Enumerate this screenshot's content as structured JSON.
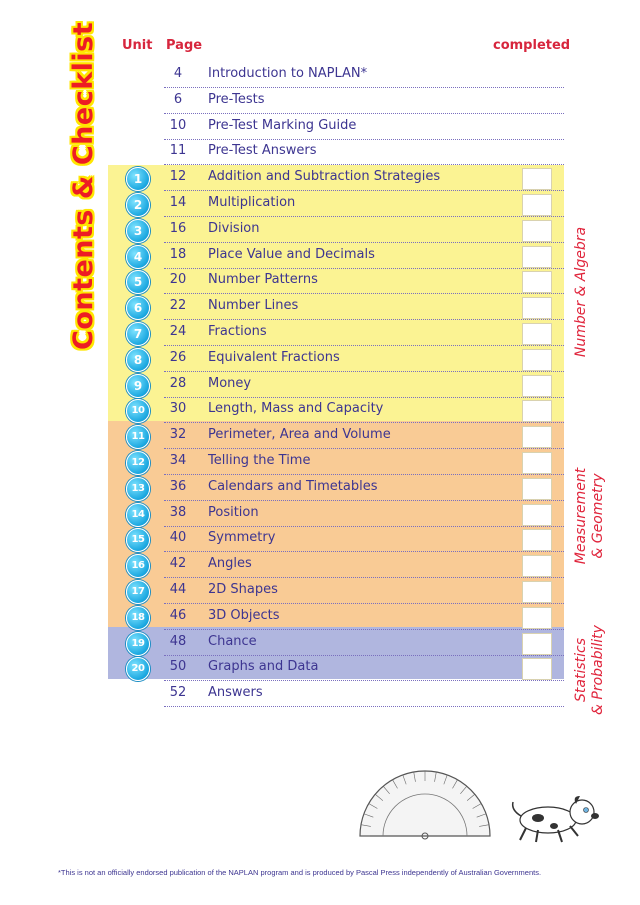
{
  "title": "Contents & Checklist",
  "headers": {
    "unit": "Unit",
    "page": "Page",
    "completed": "completed"
  },
  "colors": {
    "algebra_band": "#fbf393",
    "geometry_band": "#f9cb95",
    "stats_band": "#b0b6df",
    "accent": "#e0253c",
    "text": "#3d3591"
  },
  "rows": [
    {
      "unit": "",
      "page": "4",
      "title": "Introduction to NAPLAN*",
      "checkbox": false
    },
    {
      "unit": "",
      "page": "6",
      "title": "Pre-Tests",
      "checkbox": false
    },
    {
      "unit": "",
      "page": "10",
      "title": "Pre-Test Marking Guide",
      "checkbox": false
    },
    {
      "unit": "",
      "page": "11",
      "title": "Pre-Test Answers",
      "checkbox": false
    },
    {
      "unit": "1",
      "page": "12",
      "title": "Addition and Subtraction Strategies",
      "checkbox": true
    },
    {
      "unit": "2",
      "page": "14",
      "title": "Multiplication",
      "checkbox": true
    },
    {
      "unit": "3",
      "page": "16",
      "title": "Division",
      "checkbox": true
    },
    {
      "unit": "4",
      "page": "18",
      "title": "Place Value and Decimals",
      "checkbox": true
    },
    {
      "unit": "5",
      "page": "20",
      "title": "Number Patterns",
      "checkbox": true
    },
    {
      "unit": "6",
      "page": "22",
      "title": "Number Lines",
      "checkbox": true
    },
    {
      "unit": "7",
      "page": "24",
      "title": "Fractions",
      "checkbox": true
    },
    {
      "unit": "8",
      "page": "26",
      "title": "Equivalent Fractions",
      "checkbox": true
    },
    {
      "unit": "9",
      "page": "28",
      "title": "Money",
      "checkbox": true
    },
    {
      "unit": "10",
      "page": "30",
      "title": "Length, Mass and Capacity",
      "checkbox": true
    },
    {
      "unit": "11",
      "page": "32",
      "title": "Perimeter, Area and Volume",
      "checkbox": true
    },
    {
      "unit": "12",
      "page": "34",
      "title": "Telling the Time",
      "checkbox": true
    },
    {
      "unit": "13",
      "page": "36",
      "title": "Calendars and Timetables",
      "checkbox": true
    },
    {
      "unit": "14",
      "page": "38",
      "title": "Position",
      "checkbox": true
    },
    {
      "unit": "15",
      "page": "40",
      "title": "Symmetry",
      "checkbox": true
    },
    {
      "unit": "16",
      "page": "42",
      "title": "Angles",
      "checkbox": true
    },
    {
      "unit": "17",
      "page": "44",
      "title": "2D Shapes",
      "checkbox": true
    },
    {
      "unit": "18",
      "page": "46",
      "title": "3D Objects",
      "checkbox": true
    },
    {
      "unit": "19",
      "page": "48",
      "title": "Chance",
      "checkbox": true
    },
    {
      "unit": "20",
      "page": "50",
      "title": "Graphs and Data",
      "checkbox": true
    },
    {
      "unit": "",
      "page": "52",
      "title": "Answers",
      "checkbox": false
    }
  ],
  "strands": {
    "algebra": "Number & Algebra",
    "geometry_line1": "Measurement",
    "geometry_line2": "& Geometry",
    "stats_line1": "Statistics",
    "stats_line2": "& Probability"
  },
  "footnote": "*This is not an officially endorsed publication of the NAPLAN program and is produced by Pascal Press independently of Australian Governments."
}
